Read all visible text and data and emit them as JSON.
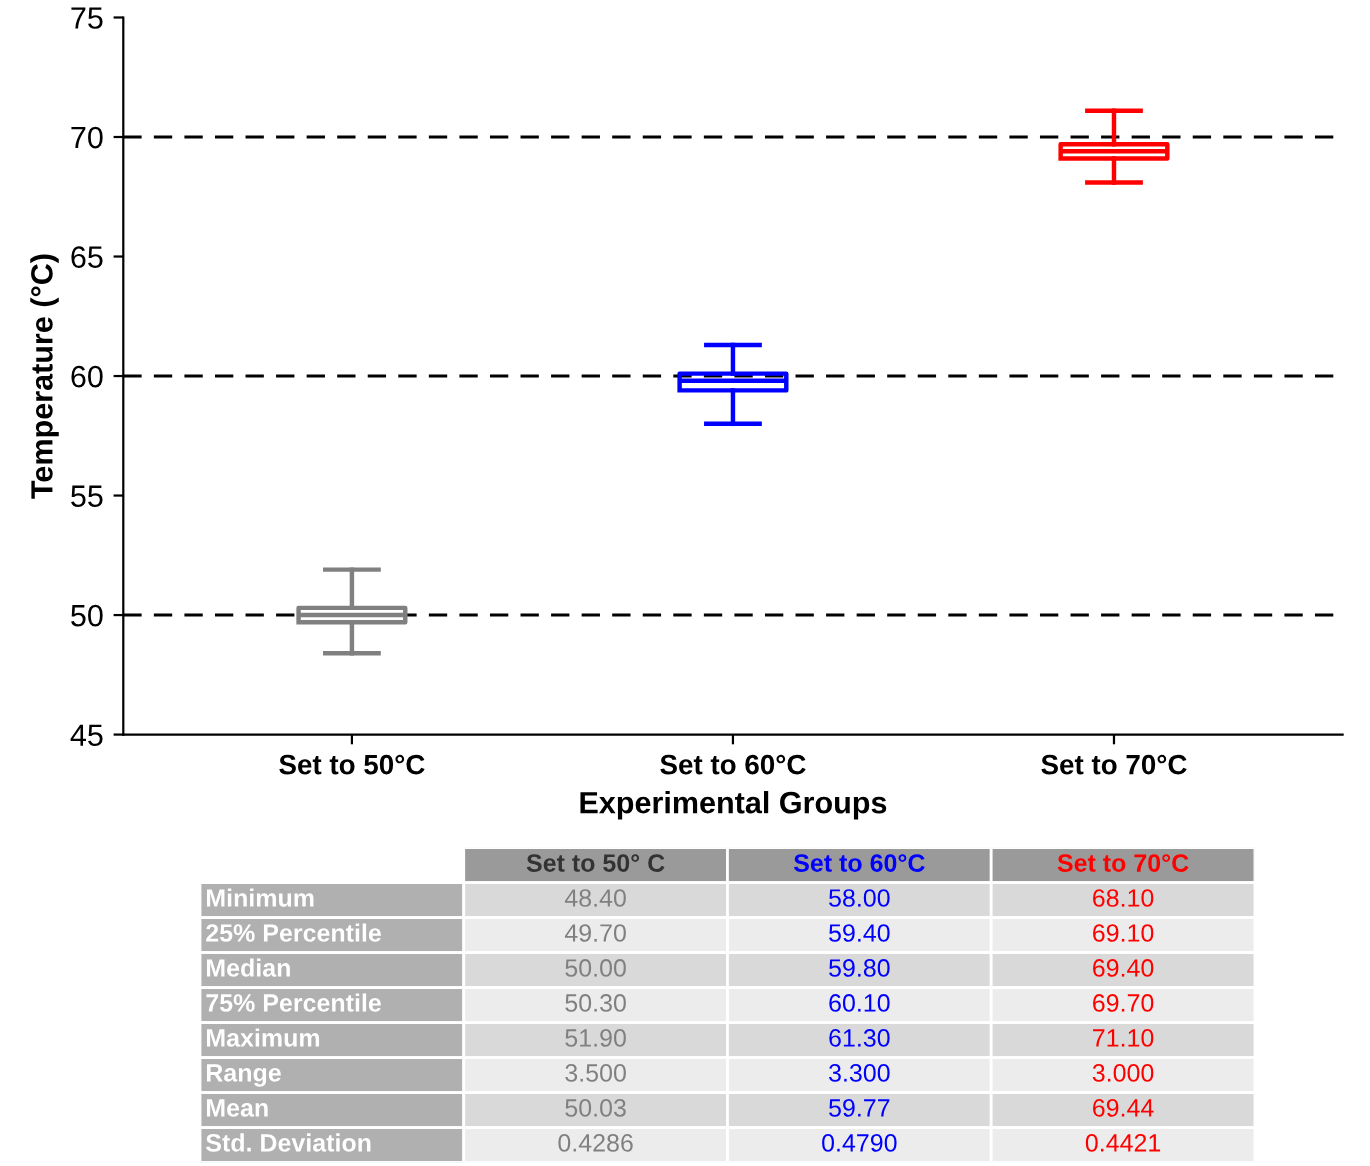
{
  "chart_data": {
    "type": "box",
    "xlabel": "Experimental Groups",
    "ylabel": "Temperature (°C)",
    "categories": [
      "Set to 50°C",
      "Set to 60°C",
      "Set to 70°C"
    ],
    "colors": [
      "#808080",
      "#0000ff",
      "#ff0000"
    ],
    "boxes": [
      {
        "low": 48.4,
        "q1": 49.7,
        "median": 50.0,
        "q3": 50.3,
        "high": 51.9
      },
      {
        "low": 58.0,
        "q1": 59.4,
        "median": 59.8,
        "q3": 60.1,
        "high": 61.3
      },
      {
        "low": 68.1,
        "q1": 69.1,
        "median": 69.4,
        "q3": 69.7,
        "high": 71.1
      }
    ],
    "ylim": [
      45,
      75
    ],
    "yticks": [
      45,
      50,
      55,
      60,
      65,
      70,
      75
    ],
    "grid": false,
    "legend": false,
    "ref_lines": [
      {
        "axis": "y",
        "value": 50,
        "line_style": "dashed",
        "color": "#000000"
      },
      {
        "axis": "y",
        "value": 60,
        "line_style": "dashed",
        "color": "#000000"
      },
      {
        "axis": "y",
        "value": 70,
        "line_style": "dashed",
        "color": "#000000"
      }
    ],
    "data_labels": true,
    "annotations": [
      "Set to 50° C",
      "Set to 60°C",
      "Set to 70°C",
      "Minimum",
      "48.40",
      "58.00",
      "68.10",
      "25% Percentile",
      "49.70",
      "59.40",
      "69.10",
      "Median",
      "50.00",
      "59.80",
      "69.40",
      "75% Percentile",
      "50.30",
      "60.10",
      "69.70",
      "Maximum",
      "51.90",
      "61.30",
      "71.10",
      "Range",
      "3.500",
      "3.300",
      "3.000",
      "Mean",
      "50.03",
      "59.77",
      "69.44",
      "Std. Deviation",
      "0.4286",
      "0.4790",
      "0.4421"
    ]
  }
}
